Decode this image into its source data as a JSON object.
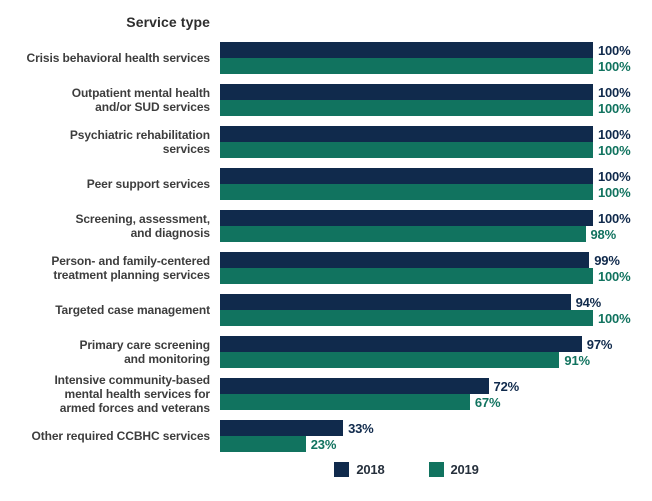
{
  "title": "Service type",
  "colors": {
    "year_2018": "#102A4C",
    "year_2019": "#11735F",
    "label_text": "#3D3D3D",
    "title_text": "#2E2E2E",
    "background": "#FFFFFF"
  },
  "legend": {
    "items": [
      {
        "label": "2018",
        "color": "#102A4C"
      },
      {
        "label": "2019",
        "color": "#11735F"
      }
    ]
  },
  "chart_data": {
    "type": "bar",
    "orientation": "horizontal",
    "title": "Service type",
    "xlabel": "",
    "ylabel": "",
    "xlim": [
      0,
      100
    ],
    "grid": false,
    "legend_position": "bottom",
    "value_suffix": "%",
    "categories": [
      "Crisis behavioral health services",
      "Outpatient mental health and/or SUD services",
      "Psychiatric rehabilitation services",
      "Peer support services",
      "Screening, assessment, and diagnosis",
      "Person- and family-centered treatment planning services",
      "Targeted case management",
      "Primary care screening and monitoring",
      "Intensive community-based mental health services for armed forces and veterans",
      "Other required CCBHC services"
    ],
    "label_lines": [
      [
        "Crisis behavioral health services"
      ],
      [
        "Outpatient mental health",
        "and/or SUD services"
      ],
      [
        "Psychiatric rehabilitation",
        "services"
      ],
      [
        "Peer support services"
      ],
      [
        "Screening, assessment,",
        "and diagnosis"
      ],
      [
        "Person- and family-centered",
        "treatment planning services"
      ],
      [
        "Targeted case management"
      ],
      [
        "Primary care screening",
        "and monitoring"
      ],
      [
        "Intensive community-based",
        "mental health services for",
        "armed forces and veterans"
      ],
      [
        "Other required CCBHC services"
      ]
    ],
    "series": [
      {
        "name": "2018",
        "color": "#102A4C",
        "values": [
          100,
          100,
          100,
          100,
          100,
          99,
          94,
          97,
          72,
          33
        ]
      },
      {
        "name": "2019",
        "color": "#11735F",
        "values": [
          100,
          100,
          100,
          100,
          98,
          100,
          100,
          91,
          67,
          23
        ]
      }
    ]
  }
}
